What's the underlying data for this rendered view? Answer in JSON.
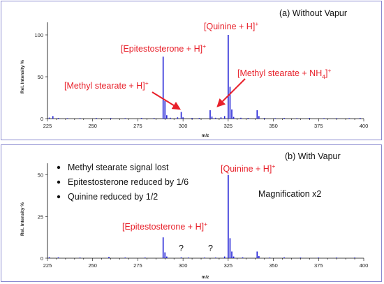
{
  "chart_data": [
    {
      "type": "bar",
      "title": "(a) Without Vapur",
      "xlabel": "m/z",
      "ylabel": "Rel. Intensity %",
      "xlim": [
        225,
        400
      ],
      "ylim": [
        0,
        115
      ],
      "x_ticks": [
        "225",
        "250",
        "275",
        "300",
        "325",
        "350",
        "375",
        "400"
      ],
      "y_ticks": [
        "0",
        "50",
        "100"
      ],
      "grid": false,
      "peaks": [
        {
          "x": 226,
          "y": 1.2
        },
        {
          "x": 228,
          "y": 3
        },
        {
          "x": 231,
          "y": 0.8
        },
        {
          "x": 236,
          "y": 0.6
        },
        {
          "x": 243,
          "y": 0.6
        },
        {
          "x": 252,
          "y": 0.8
        },
        {
          "x": 260,
          "y": 0.7
        },
        {
          "x": 268,
          "y": 0.6
        },
        {
          "x": 277,
          "y": 0.8
        },
        {
          "x": 284,
          "y": 0.7
        },
        {
          "x": 289,
          "y": 74
        },
        {
          "x": 290,
          "y": 21
        },
        {
          "x": 291,
          "y": 4
        },
        {
          "x": 293,
          "y": 1
        },
        {
          "x": 297,
          "y": 1.5
        },
        {
          "x": 299,
          "y": 8
        },
        {
          "x": 300,
          "y": 1.5
        },
        {
          "x": 305,
          "y": 0.8
        },
        {
          "x": 309,
          "y": 0.8
        },
        {
          "x": 315,
          "y": 10
        },
        {
          "x": 316,
          "y": 2.5
        },
        {
          "x": 318,
          "y": 1
        },
        {
          "x": 321,
          "y": 1.5
        },
        {
          "x": 323,
          "y": 3
        },
        {
          "x": 325,
          "y": 100
        },
        {
          "x": 326,
          "y": 38
        },
        {
          "x": 327,
          "y": 11
        },
        {
          "x": 328,
          "y": 2
        },
        {
          "x": 332,
          "y": 1
        },
        {
          "x": 336,
          "y": 0.8
        },
        {
          "x": 341,
          "y": 10
        },
        {
          "x": 342,
          "y": 3
        },
        {
          "x": 345,
          "y": 0.8
        },
        {
          "x": 351,
          "y": 0.6
        },
        {
          "x": 356,
          "y": 0.8
        },
        {
          "x": 363,
          "y": 0.6
        },
        {
          "x": 370,
          "y": 0.8
        },
        {
          "x": 378,
          "y": 0.6
        },
        {
          "x": 385,
          "y": 0.6
        },
        {
          "x": 392,
          "y": 0.6
        },
        {
          "x": 398,
          "y": 0.8
        }
      ],
      "color": "#1f1fd6",
      "annotations": {
        "epitestosterone": "[Epitestosterone + H]",
        "quinine": "[Quinine + H]",
        "methyl_stearate_h": "[Methyl stearate + H]",
        "methyl_stearate_nh4": "[Methyl stearate + NH",
        "nh4_sub": "4",
        "nh4_close": "]",
        "plus": "+"
      },
      "arrows": [
        {
          "target_x": 299,
          "target_y": 8,
          "label": "[Methyl stearate + H]+"
        },
        {
          "target_x": 315,
          "target_y": 10,
          "label": "[Methyl stearate + NH4]+"
        }
      ]
    },
    {
      "type": "bar",
      "title": "(b) With Vapur",
      "xlabel": "m/z",
      "ylabel": "Rel. Intensity %",
      "xlim": [
        225,
        400
      ],
      "ylim": [
        0,
        57
      ],
      "x_ticks": [
        "225",
        "250",
        "275",
        "300",
        "325",
        "350",
        "375",
        "400"
      ],
      "y_ticks": [
        "0",
        "25",
        "50"
      ],
      "grid": false,
      "peaks": [
        {
          "x": 226,
          "y": 0.6
        },
        {
          "x": 231,
          "y": 0.5
        },
        {
          "x": 243,
          "y": 0.4
        },
        {
          "x": 259,
          "y": 0.8
        },
        {
          "x": 268,
          "y": 0.4
        },
        {
          "x": 279,
          "y": 0.4
        },
        {
          "x": 289,
          "y": 12.5
        },
        {
          "x": 290,
          "y": 3.5
        },
        {
          "x": 291,
          "y": 1
        },
        {
          "x": 299,
          "y": 0.5
        },
        {
          "x": 303,
          "y": 0.4
        },
        {
          "x": 312,
          "y": 0.4
        },
        {
          "x": 318,
          "y": 0.4
        },
        {
          "x": 323,
          "y": 1
        },
        {
          "x": 325,
          "y": 50
        },
        {
          "x": 326,
          "y": 12
        },
        {
          "x": 327,
          "y": 4
        },
        {
          "x": 328,
          "y": 1
        },
        {
          "x": 333,
          "y": 0.5
        },
        {
          "x": 341,
          "y": 4
        },
        {
          "x": 342,
          "y": 1.3
        },
        {
          "x": 348,
          "y": 0.4
        },
        {
          "x": 356,
          "y": 0.5
        },
        {
          "x": 365,
          "y": 0.4
        },
        {
          "x": 375,
          "y": 0.4
        },
        {
          "x": 385,
          "y": 0.4
        },
        {
          "x": 395,
          "y": 0.4
        }
      ],
      "color": "#1f1fd6",
      "annotations": {
        "epitestosterone": "[Epitestosterone + H]",
        "quinine": "[Quinine + H]",
        "plus": "+",
        "question_marks": [
          "?",
          "?"
        ],
        "magnification": "Magnification x2"
      },
      "bullets": [
        "Methyl stearate signal lost",
        "Epitestosterone reduced by 1/6",
        "Quinine reduced by 1/2"
      ]
    }
  ],
  "colors": {
    "peak": "#1f1fd6",
    "annotation": "#e8202a",
    "panel_border": "#8a8ad0"
  }
}
